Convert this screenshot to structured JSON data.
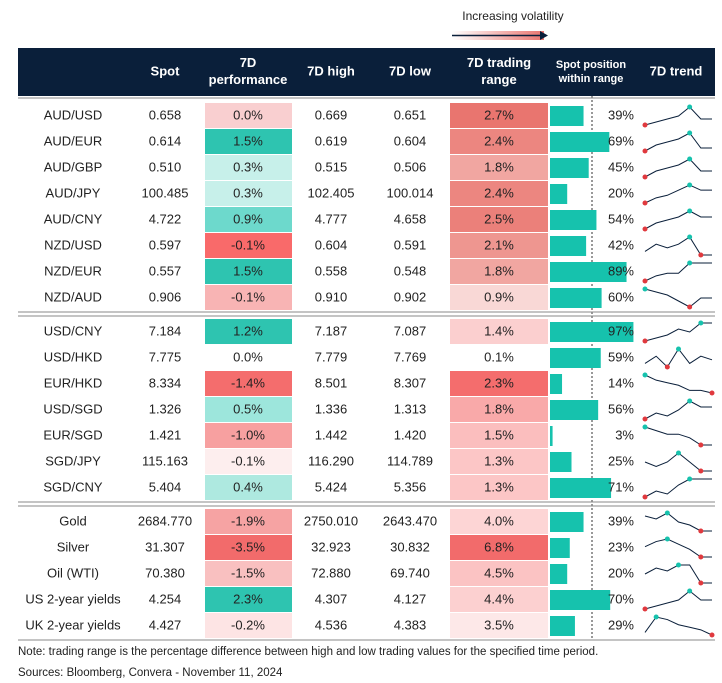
{
  "legend": {
    "title": "Increasing volatility"
  },
  "columns": [
    [
      "Spot"
    ],
    [
      "7D",
      "performance"
    ],
    [
      "7D high"
    ],
    [
      "7D low"
    ],
    [
      "7D trading",
      "range"
    ],
    [
      "Spot position",
      "within range"
    ],
    [
      "7D trend"
    ]
  ],
  "groups": [
    {
      "rows": [
        {
          "pair": "AUD/USD",
          "spot": "0.658",
          "perf": "0.0%",
          "perf_color": "#f9cfd0",
          "high": "0.669",
          "low": "0.651",
          "range": "2.7%",
          "range_color": "#e9756f",
          "position": 39,
          "position_label": "39%",
          "trend": [
            3,
            4,
            5,
            6,
            9,
            5,
            5
          ]
        },
        {
          "pair": "AUD/EUR",
          "spot": "0.614",
          "perf": "1.5%",
          "perf_color": "#2ec4b0",
          "high": "0.619",
          "low": "0.604",
          "range": "2.4%",
          "range_color": "#ec8680",
          "position": 69,
          "position_label": "69%",
          "trend": [
            2,
            4,
            5,
            6,
            8,
            3,
            3
          ]
        },
        {
          "pair": "AUD/GBP",
          "spot": "0.510",
          "perf": "0.3%",
          "perf_color": "#c7f0ea",
          "high": "0.515",
          "low": "0.506",
          "range": "1.8%",
          "range_color": "#f1a6a1",
          "position": 45,
          "position_label": "45%",
          "trend": [
            2,
            4,
            5,
            6,
            8,
            4,
            4
          ]
        },
        {
          "pair": "AUD/JPY",
          "spot": "100.485",
          "perf": "0.3%",
          "perf_color": "#c7f0ea",
          "high": "102.405",
          "low": "100.014",
          "range": "2.4%",
          "range_color": "#ec8680",
          "position": 20,
          "position_label": "20%",
          "trend": [
            1,
            3,
            4,
            6,
            8,
            6,
            6
          ]
        },
        {
          "pair": "AUD/CNY",
          "spot": "4.722",
          "perf": "0.9%",
          "perf_color": "#6dd9cc",
          "high": "4.777",
          "low": "4.658",
          "range": "2.5%",
          "range_color": "#eb807a",
          "position": 54,
          "position_label": "54%",
          "trend": [
            2,
            4,
            5,
            6,
            8,
            6,
            6
          ]
        },
        {
          "pair": "NZD/USD",
          "spot": "0.597",
          "perf": "-0.1%",
          "perf_color": "#f96a6a",
          "high": "0.604",
          "low": "0.591",
          "range": "2.1%",
          "range_color": "#ee9690",
          "position": 42,
          "position_label": "42%",
          "trend": [
            4,
            6,
            5,
            6,
            8,
            3,
            3
          ]
        },
        {
          "pair": "NZD/EUR",
          "spot": "0.557",
          "perf": "1.5%",
          "perf_color": "#2ec4b0",
          "high": "0.558",
          "low": "0.548",
          "range": "1.8%",
          "range_color": "#f1a6a1",
          "position": 89,
          "position_label": "89%",
          "trend": [
            1,
            3,
            4,
            4,
            8,
            8,
            8
          ]
        },
        {
          "pair": "NZD/AUD",
          "spot": "0.906",
          "perf": "-0.1%",
          "perf_color": "#f8b4b4",
          "high": "0.910",
          "low": "0.902",
          "range": "0.9%",
          "range_color": "#f9d8d6",
          "position": 60,
          "position_label": "60%",
          "trend": [
            8,
            7,
            6,
            4,
            2,
            5,
            5
          ]
        }
      ]
    },
    {
      "rows": [
        {
          "pair": "USD/CNY",
          "spot": "7.184",
          "perf": "1.2%",
          "perf_color": "#2ec4b0",
          "high": "7.187",
          "low": "7.087",
          "range": "1.4%",
          "range_color": "#fbcfcf",
          "position": 97,
          "position_label": "97%",
          "trend": [
            2,
            3,
            4,
            6,
            5,
            8,
            8
          ]
        },
        {
          "pair": "USD/HKD",
          "spot": "7.775",
          "perf": "0.0%",
          "perf_color": "#ffffff",
          "high": "7.779",
          "low": "7.769",
          "range": "0.1%",
          "range_color": "#ffffff",
          "position": 59,
          "position_label": "59%",
          "trend": [
            4,
            6,
            3,
            8,
            4,
            6,
            5
          ]
        },
        {
          "pair": "EUR/HKD",
          "spot": "8.334",
          "perf": "-1.4%",
          "perf_color": "#f46d6d",
          "high": "8.501",
          "low": "8.307",
          "range": "2.3%",
          "range_color": "#f46d6d",
          "position": 14,
          "position_label": "14%",
          "trend": [
            8,
            6,
            5,
            4,
            2,
            2,
            1
          ]
        },
        {
          "pair": "USD/SGD",
          "spot": "1.326",
          "perf": "0.5%",
          "perf_color": "#9de6dc",
          "high": "1.336",
          "low": "1.313",
          "range": "1.8%",
          "range_color": "#f9a9a9",
          "position": 56,
          "position_label": "56%",
          "trend": [
            2,
            4,
            3,
            5,
            8,
            6,
            6
          ]
        },
        {
          "pair": "EUR/SGD",
          "spot": "1.421",
          "perf": "-1.0%",
          "perf_color": "#f7a0a0",
          "high": "1.442",
          "low": "1.420",
          "range": "1.5%",
          "range_color": "#fbbebe",
          "position": 3,
          "position_label": "3%",
          "trend": [
            8,
            7,
            6,
            6,
            5,
            3,
            3
          ]
        },
        {
          "pair": "SGD/JPY",
          "spot": "115.163",
          "perf": "-0.1%",
          "perf_color": "#fdeeee",
          "high": "116.290",
          "low": "114.789",
          "range": "1.3%",
          "range_color": "#fcc6c6",
          "position": 25,
          "position_label": "25%",
          "trend": [
            6,
            5,
            6,
            8,
            6,
            4,
            4
          ]
        },
        {
          "pair": "SGD/CNY",
          "spot": "5.404",
          "perf": "0.4%",
          "perf_color": "#aee9e0",
          "high": "5.424",
          "low": "5.356",
          "range": "1.3%",
          "range_color": "#fcc6c6",
          "position": 71,
          "position_label": "71%",
          "trend": [
            2,
            4,
            3,
            6,
            8,
            8,
            8
          ]
        }
      ]
    },
    {
      "rows": [
        {
          "pair": "Gold",
          "spot": "2684.770",
          "perf": "-1.9%",
          "perf_color": "#f6a3a3",
          "high": "2750.010",
          "low": "2643.470",
          "range": "4.0%",
          "range_color": "#fdd5d5",
          "position": 39,
          "position_label": "39%",
          "trend": [
            8,
            7,
            9,
            6,
            5,
            3,
            3
          ]
        },
        {
          "pair": "Silver",
          "spot": "31.307",
          "perf": "-3.5%",
          "perf_color": "#f26b6b",
          "high": "32.923",
          "low": "30.832",
          "range": "6.8%",
          "range_color": "#f26b6b",
          "position": 23,
          "position_label": "23%",
          "trend": [
            6,
            8,
            9,
            7,
            5,
            2,
            2
          ]
        },
        {
          "pair": "Oil (WTI)",
          "spot": "70.380",
          "perf": "-1.5%",
          "perf_color": "#f9c0c0",
          "high": "72.880",
          "low": "69.740",
          "range": "4.5%",
          "range_color": "#fbc3c3",
          "position": 20,
          "position_label": "20%",
          "trend": [
            5,
            7,
            6,
            8,
            8,
            2,
            2
          ]
        },
        {
          "pair": "US 2-year yields",
          "spot": "4.254",
          "perf": "2.3%",
          "perf_color": "#2ec4b0",
          "high": "4.307",
          "low": "4.127",
          "range": "4.4%",
          "range_color": "#fcd0d0",
          "position": 70,
          "position_label": "70%",
          "trend": [
            3,
            4,
            5,
            6,
            9,
            6,
            6
          ]
        },
        {
          "pair": "UK 2-year yields",
          "spot": "4.427",
          "perf": "-0.2%",
          "perf_color": "#fde4e4",
          "high": "4.536",
          "low": "4.383",
          "range": "3.5%",
          "range_color": "#fde8e8",
          "position": 29,
          "position_label": "29%",
          "trend": [
            3,
            9,
            8,
            6,
            5,
            4,
            2
          ]
        }
      ]
    }
  ],
  "notes": [
    "Note: trading range is the percentage difference between high and low trading values for the specified time period.",
    "Sources: Bloomberg, Convera - November 11, 2024"
  ]
}
